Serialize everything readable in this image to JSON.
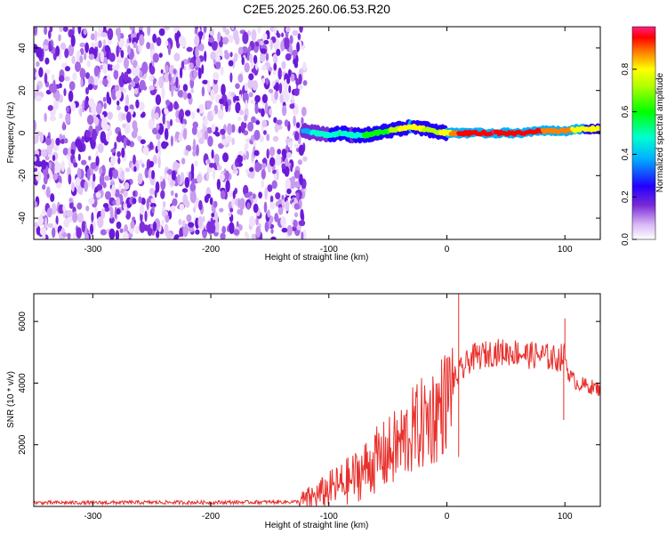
{
  "title": "C2E5.2025.260.06.53.R20",
  "chart_data": [
    {
      "type": "heatmap",
      "title": "C2E5.2025.260.06.53.R20",
      "xlabel": "Height of straight line (km)",
      "ylabel": "Frequency (Hz)",
      "xlim": [
        -350,
        130
      ],
      "ylim": [
        -50,
        50
      ],
      "xticks": [
        -300,
        -200,
        -100,
        0,
        100
      ],
      "yticks": [
        -40,
        -20,
        0,
        20,
        40
      ],
      "noise_region_x": [
        -350,
        -120
      ],
      "signal_track": {
        "x": [
          -122,
          -110,
          -100,
          -90,
          -80,
          -70,
          -60,
          -50,
          -40,
          -30,
          -20,
          -10,
          0,
          10,
          20,
          40,
          60,
          80,
          100,
          115,
          130
        ],
        "freq": [
          1,
          0,
          -1,
          0,
          -1,
          -1,
          0,
          1,
          2,
          3,
          2,
          1,
          0,
          0,
          0,
          0,
          0,
          1,
          1,
          2,
          2
        ],
        "amplitude": [
          0.45,
          0.5,
          0.55,
          0.6,
          0.55,
          0.6,
          0.65,
          0.7,
          0.8,
          0.85,
          0.8,
          0.75,
          0.85,
          0.95,
          0.98,
          1.0,
          0.98,
          0.95,
          0.9,
          0.85,
          0.8
        ]
      },
      "colorbar": {
        "label": "Normalized spectral amplitude",
        "range": [
          0.0,
          1.0
        ],
        "ticks": [
          0.0,
          0.2,
          0.4,
          0.6,
          0.8
        ]
      }
    },
    {
      "type": "line",
      "xlabel": "Height of straight line (km)",
      "ylabel": "SNR (10 * v/v)",
      "xlim": [
        -350,
        130
      ],
      "ylim": [
        0,
        6900
      ],
      "xticks": [
        -300,
        -200,
        -100,
        0,
        100
      ],
      "yticks": [
        2000,
        4000,
        6000
      ],
      "color": "#e8302c",
      "series": [
        {
          "name": "SNR",
          "x": [
            -350,
            -300,
            -250,
            -200,
            -150,
            -125,
            -110,
            -100,
            -90,
            -80,
            -70,
            -60,
            -50,
            -40,
            -30,
            -20,
            -10,
            0,
            5,
            10,
            15,
            20,
            30,
            40,
            50,
            60,
            70,
            80,
            90,
            95,
            100,
            103,
            110,
            120,
            130
          ],
          "y": [
            120,
            120,
            130,
            130,
            140,
            150,
            350,
            550,
            700,
            900,
            1200,
            1500,
            1700,
            2000,
            2400,
            2700,
            3000,
            3500,
            4000,
            4300,
            4500,
            4800,
            4900,
            5000,
            5000,
            5000,
            4900,
            4900,
            4800,
            4800,
            4900,
            4300,
            4000,
            3900,
            3800
          ]
        }
      ],
      "spikes": [
        {
          "x": 10,
          "y": 6900
        },
        {
          "x": 100,
          "y": 6100
        },
        {
          "x": 99,
          "y": 2800
        },
        {
          "x": 10,
          "y": 1600
        }
      ]
    }
  ]
}
